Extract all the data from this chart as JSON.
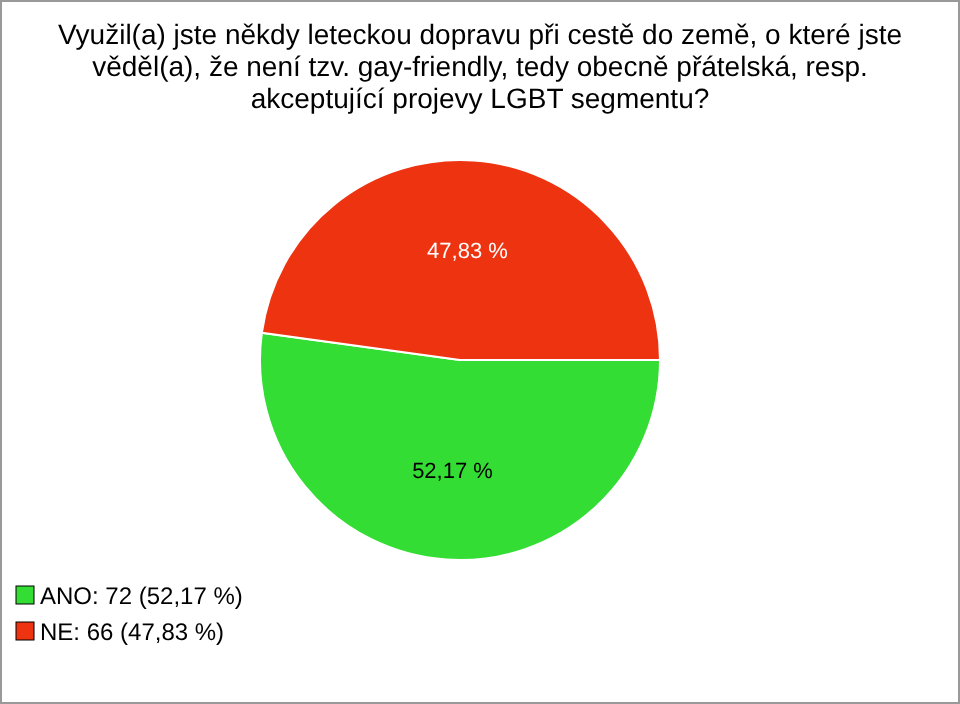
{
  "chart_data": {
    "type": "pie",
    "title": "Využil(a) jste někdy leteckou dopravu při cestě do země, o které jste věděl(a), že není tzv. gay-friendly, tedy obecně přátelská, resp. akceptující projevy LGBT segmentu?",
    "categories": [
      "ANO: 72 (52,17 %)",
      "NE: 66 (47,83 %)"
    ],
    "values": [
      52.17,
      47.83
    ],
    "value_labels": [
      "52,17 %",
      "47,83 %"
    ],
    "colors": [
      "#33dd33",
      "#ee3311"
    ],
    "legend": "bottom left"
  }
}
